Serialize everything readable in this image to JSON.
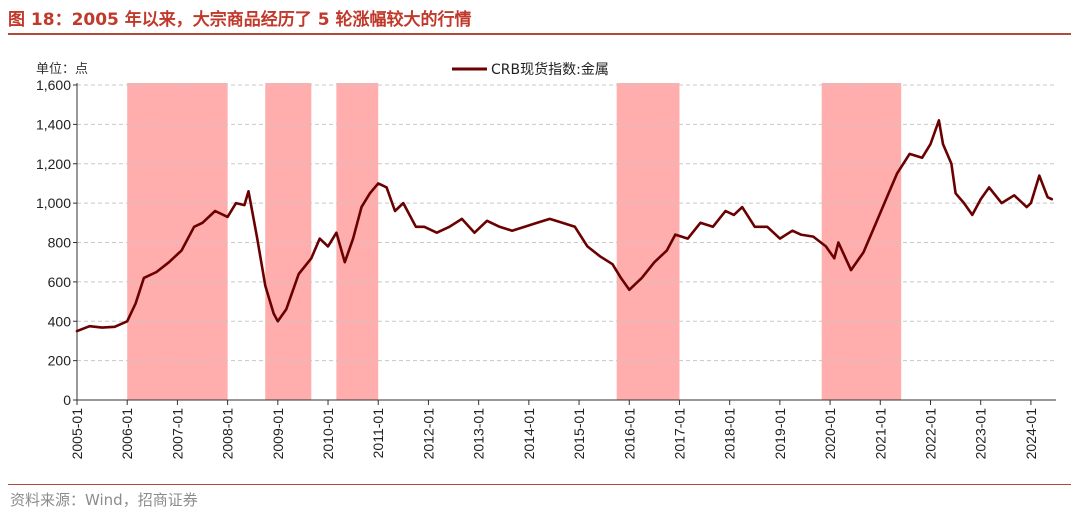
{
  "figure": {
    "title": "图 18：2005 年以来，大宗商品经历了 5 轮涨幅较大的行情",
    "source": "资料来源：Wind，招商证券",
    "unit_label": "单位：点"
  },
  "colors": {
    "line": "#6b0000",
    "shade": "#ffadad",
    "title": "#c0392b",
    "grid": "#c8c8c8"
  },
  "chart_data": {
    "type": "line",
    "series": [
      {
        "name": "CRB现货指数:金属",
        "x": [
          "2005-01",
          "2005-04",
          "2005-07",
          "2005-10",
          "2006-01",
          "2006-03",
          "2006-05",
          "2006-08",
          "2006-11",
          "2007-02",
          "2007-05",
          "2007-07",
          "2007-10",
          "2008-01",
          "2008-03",
          "2008-05",
          "2008-06",
          "2008-08",
          "2008-10",
          "2008-12",
          "2009-01",
          "2009-03",
          "2009-06",
          "2009-09",
          "2009-11",
          "2010-01",
          "2010-03",
          "2010-05",
          "2010-07",
          "2010-09",
          "2010-11",
          "2011-01",
          "2011-03",
          "2011-05",
          "2011-07",
          "2011-10",
          "2011-12",
          "2012-03",
          "2012-06",
          "2012-09",
          "2012-12",
          "2013-03",
          "2013-06",
          "2013-09",
          "2013-12",
          "2014-03",
          "2014-06",
          "2014-09",
          "2014-12",
          "2015-03",
          "2015-06",
          "2015-09",
          "2015-11",
          "2016-01",
          "2016-04",
          "2016-07",
          "2016-10",
          "2016-12",
          "2017-03",
          "2017-06",
          "2017-09",
          "2017-12",
          "2018-02",
          "2018-04",
          "2018-07",
          "2018-10",
          "2019-01",
          "2019-04",
          "2019-06",
          "2019-09",
          "2019-12",
          "2020-02",
          "2020-03",
          "2020-06",
          "2020-09",
          "2020-12",
          "2021-03",
          "2021-05",
          "2021-08",
          "2021-11",
          "2022-01",
          "2022-03",
          "2022-04",
          "2022-06",
          "2022-07",
          "2022-09",
          "2022-11",
          "2023-01",
          "2023-03",
          "2023-06",
          "2023-09",
          "2023-12",
          "2024-01",
          "2024-03",
          "2024-05",
          "2024-06"
        ],
        "values": [
          350,
          375,
          368,
          372,
          400,
          490,
          620,
          650,
          700,
          760,
          880,
          900,
          960,
          930,
          1000,
          990,
          1060,
          830,
          580,
          440,
          400,
          460,
          640,
          720,
          820,
          780,
          850,
          700,
          820,
          980,
          1050,
          1100,
          1080,
          960,
          1000,
          880,
          880,
          850,
          880,
          920,
          850,
          910,
          880,
          860,
          880,
          900,
          920,
          900,
          880,
          780,
          730,
          690,
          620,
          560,
          620,
          700,
          760,
          840,
          820,
          900,
          880,
          960,
          940,
          980,
          880,
          880,
          820,
          860,
          840,
          830,
          780,
          720,
          800,
          660,
          750,
          900,
          1050,
          1150,
          1250,
          1230,
          1300,
          1420,
          1300,
          1200,
          1050,
          1000,
          940,
          1020,
          1080,
          1000,
          1040,
          980,
          1000,
          1140,
          1030,
          1020
        ]
      }
    ],
    "shaded_periods": [
      {
        "start": "2006-01",
        "end": "2008-01"
      },
      {
        "start": "2008-10",
        "end": "2009-09"
      },
      {
        "start": "2010-03",
        "end": "2011-01"
      },
      {
        "start": "2015-10",
        "end": "2017-01"
      },
      {
        "start": "2019-11",
        "end": "2021-06"
      }
    ],
    "x_ticks": [
      "2005-01",
      "2006-01",
      "2007-01",
      "2008-01",
      "2009-01",
      "2010-01",
      "2011-01",
      "2012-01",
      "2013-01",
      "2014-01",
      "2015-01",
      "2016-01",
      "2017-01",
      "2018-01",
      "2019-01",
      "2020-01",
      "2021-01",
      "2022-01",
      "2023-01",
      "2024-01"
    ],
    "y_ticks": [
      "0",
      "200",
      "400",
      "600",
      "800",
      "1,000",
      "1,200",
      "1,400",
      "1,600"
    ],
    "ylim": [
      0,
      1600
    ],
    "grid": "horizontal dashed",
    "legend_position": "top-center"
  }
}
